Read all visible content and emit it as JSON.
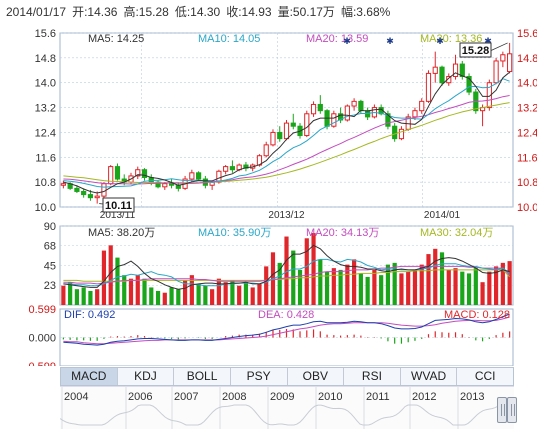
{
  "header": {
    "date": "2014/01/17",
    "open": "开:14.36",
    "high": "高:15.28",
    "low": "低:14.30",
    "close": "收:14.93",
    "volume": "量:50.17万",
    "amplitude": "幅:3.68%"
  },
  "colors": {
    "up": "#e0262a",
    "down": "#1aa51a",
    "ma5": "#333333",
    "ma10": "#2aa7c9",
    "ma20": "#c44cbf",
    "ma30": "#a5b820",
    "grid": "#b9cde2",
    "up_axis": "#d01818",
    "down_axis": "#139513"
  },
  "tabs": [
    "MACD",
    "KDJ",
    "BOLL",
    "PSY",
    "OBV",
    "RSI",
    "WVAD",
    "CCI"
  ],
  "active_tab": "MACD",
  "timeline_years": [
    "2004",
    "2006",
    "2007",
    "2008",
    "2009",
    "2010",
    "2011",
    "2012",
    "2013"
  ],
  "chart_data": [
    {
      "type": "candlestick",
      "ma_legend": [
        "MA5: 14.25",
        "MA10: 14.05",
        "MA20: 13.59",
        "MA30: 13.36"
      ],
      "y_ticks": [
        "15.6",
        "14.8",
        "14.0",
        "13.2",
        "12.4",
        "11.6",
        "10.8",
        "10.0"
      ],
      "x_ticks": [
        "2013/11",
        "2013/12",
        "2014/01"
      ],
      "ylim": [
        10.0,
        15.6
      ],
      "annotations": {
        "high_label": "15.28",
        "low_label": "10.11"
      },
      "ohlc": [
        [
          10.7,
          10.85,
          10.6,
          10.75
        ],
        [
          10.75,
          10.8,
          10.55,
          10.6
        ],
        [
          10.6,
          10.7,
          10.45,
          10.5
        ],
        [
          10.5,
          10.6,
          10.3,
          10.4
        ],
        [
          10.4,
          10.55,
          10.2,
          10.3
        ],
        [
          10.3,
          10.5,
          10.11,
          10.35
        ],
        [
          10.35,
          10.8,
          10.3,
          10.75
        ],
        [
          10.75,
          11.35,
          10.7,
          11.3
        ],
        [
          11.3,
          11.4,
          10.85,
          10.9
        ],
        [
          10.9,
          11.05,
          10.7,
          10.8
        ],
        [
          10.8,
          11.1,
          10.75,
          11.0
        ],
        [
          11.0,
          11.3,
          10.9,
          11.2
        ],
        [
          11.2,
          11.25,
          10.85,
          10.95
        ],
        [
          10.95,
          11.05,
          10.7,
          10.8
        ],
        [
          10.8,
          10.85,
          10.6,
          10.65
        ],
        [
          10.65,
          10.8,
          10.55,
          10.75
        ],
        [
          10.75,
          10.9,
          10.6,
          10.7
        ],
        [
          10.7,
          10.8,
          10.5,
          10.6
        ],
        [
          10.6,
          11.0,
          10.55,
          10.9
        ],
        [
          10.9,
          11.2,
          10.8,
          11.1
        ],
        [
          11.1,
          11.15,
          10.85,
          10.9
        ],
        [
          10.9,
          11.0,
          10.6,
          10.7
        ],
        [
          10.7,
          10.85,
          10.55,
          10.8
        ],
        [
          10.8,
          11.2,
          10.75,
          11.15
        ],
        [
          11.15,
          11.35,
          11.05,
          11.3
        ],
        [
          11.3,
          11.5,
          11.1,
          11.2
        ],
        [
          11.2,
          11.4,
          11.15,
          11.35
        ],
        [
          11.35,
          11.45,
          11.15,
          11.25
        ],
        [
          11.25,
          11.4,
          11.15,
          11.35
        ],
        [
          11.35,
          11.7,
          11.3,
          11.65
        ],
        [
          11.65,
          12.1,
          11.6,
          12.0
        ],
        [
          12.0,
          12.5,
          11.95,
          12.4
        ],
        [
          12.4,
          12.6,
          12.1,
          12.2
        ],
        [
          12.2,
          12.8,
          12.15,
          12.7
        ],
        [
          12.7,
          13.0,
          12.5,
          12.6
        ],
        [
          12.6,
          12.7,
          12.2,
          12.3
        ],
        [
          12.3,
          13.1,
          12.25,
          13.0
        ],
        [
          13.0,
          13.4,
          12.9,
          13.3
        ],
        [
          13.3,
          13.6,
          13.0,
          13.1
        ],
        [
          13.1,
          13.15,
          12.5,
          12.6
        ],
        [
          12.6,
          13.1,
          12.55,
          13.0
        ],
        [
          13.0,
          13.2,
          12.7,
          12.8
        ],
        [
          12.8,
          13.3,
          12.75,
          13.25
        ],
        [
          13.25,
          13.5,
          13.1,
          13.4
        ],
        [
          13.4,
          13.45,
          13.0,
          13.1
        ],
        [
          13.1,
          13.2,
          12.8,
          12.9
        ],
        [
          12.9,
          13.3,
          12.85,
          13.2
        ],
        [
          13.2,
          13.3,
          12.95,
          13.0
        ],
        [
          13.0,
          13.1,
          12.5,
          12.6
        ],
        [
          12.6,
          12.7,
          12.1,
          12.2
        ],
        [
          12.2,
          12.6,
          12.15,
          12.5
        ],
        [
          12.5,
          13.0,
          12.45,
          12.9
        ],
        [
          12.9,
          13.2,
          12.8,
          13.1
        ],
        [
          13.1,
          13.5,
          13.0,
          13.4
        ],
        [
          13.4,
          14.4,
          13.35,
          14.3
        ],
        [
          14.3,
          15.0,
          14.0,
          14.5
        ],
        [
          14.5,
          14.55,
          13.9,
          14.0
        ],
        [
          14.0,
          14.3,
          13.9,
          14.2
        ],
        [
          14.2,
          14.9,
          14.1,
          14.6
        ],
        [
          14.6,
          14.7,
          14.1,
          14.2
        ],
        [
          14.2,
          14.3,
          13.6,
          13.7
        ],
        [
          13.7,
          13.8,
          13.0,
          13.1
        ],
        [
          13.1,
          13.3,
          12.6,
          13.2
        ],
        [
          13.2,
          14.1,
          13.1,
          14.0
        ],
        [
          14.0,
          14.8,
          13.95,
          14.7
        ],
        [
          14.7,
          15.0,
          14.5,
          14.9
        ],
        [
          14.36,
          15.28,
          14.3,
          14.93
        ]
      ],
      "ma5": [
        10.8,
        10.75,
        10.68,
        10.58,
        10.5,
        10.45,
        10.5,
        10.63,
        10.75,
        10.8,
        10.9,
        11.04,
        11.02,
        10.95,
        10.92,
        10.87,
        10.79,
        10.7,
        10.74,
        10.81,
        10.85,
        10.84,
        10.84,
        10.93,
        11.01,
        11.07,
        11.2,
        11.26,
        11.29,
        11.36,
        11.49,
        11.73,
        11.92,
        12.18,
        12.38,
        12.44,
        12.56,
        12.78,
        12.86,
        12.86,
        12.86,
        12.96,
        12.95,
        12.91,
        13.11,
        13.09,
        13.13,
        13.15,
        12.96,
        12.78,
        12.7,
        12.68,
        12.66,
        12.82,
        13.24,
        13.64,
        13.94,
        14.15,
        14.32,
        14.22,
        14.14,
        13.88,
        13.56,
        13.56,
        13.76,
        14.16,
        14.34
      ],
      "ma10": [
        10.85,
        10.83,
        10.8,
        10.76,
        10.71,
        10.66,
        10.64,
        10.65,
        10.66,
        10.67,
        10.68,
        10.74,
        10.83,
        10.85,
        10.86,
        10.88,
        10.91,
        10.88,
        10.85,
        10.86,
        10.86,
        10.84,
        10.79,
        10.83,
        10.87,
        10.92,
        11.0,
        11.03,
        11.1,
        11.18,
        11.31,
        11.46,
        11.58,
        11.76,
        11.91,
        12.0,
        12.13,
        12.3,
        12.49,
        12.6,
        12.71,
        12.82,
        12.92,
        12.96,
        13.01,
        13.01,
        13.04,
        13.02,
        12.95,
        12.88,
        12.86,
        12.86,
        12.84,
        12.83,
        12.98,
        13.16,
        13.3,
        13.42,
        13.58,
        13.72,
        13.87,
        13.88,
        13.84,
        13.85,
        13.97,
        14.13,
        14.05
      ],
      "ma20": [
        10.9,
        10.89,
        10.87,
        10.84,
        10.81,
        10.78,
        10.76,
        10.75,
        10.75,
        10.75,
        10.74,
        10.74,
        10.75,
        10.76,
        10.76,
        10.77,
        10.78,
        10.77,
        10.76,
        10.76,
        10.77,
        10.79,
        10.82,
        10.84,
        10.85,
        10.88,
        10.92,
        10.95,
        10.97,
        11.01,
        11.06,
        11.12,
        11.2,
        11.28,
        11.37,
        11.45,
        11.54,
        11.64,
        11.75,
        11.85,
        11.95,
        12.04,
        12.15,
        12.24,
        12.34,
        12.44,
        12.54,
        12.63,
        12.71,
        12.75,
        12.79,
        12.84,
        12.88,
        12.92,
        12.97,
        13.04,
        13.1,
        13.17,
        13.23,
        13.3,
        13.37,
        13.4,
        13.41,
        13.44,
        13.49,
        13.55,
        13.59
      ],
      "ma30": [
        11.0,
        10.98,
        10.96,
        10.94,
        10.91,
        10.88,
        10.85,
        10.83,
        10.82,
        10.81,
        10.8,
        10.79,
        10.79,
        10.79,
        10.78,
        10.78,
        10.78,
        10.78,
        10.78,
        10.78,
        10.78,
        10.79,
        10.8,
        10.81,
        10.82,
        10.84,
        10.86,
        10.88,
        10.9,
        10.93,
        10.96,
        11.0,
        11.05,
        11.1,
        11.16,
        11.22,
        11.29,
        11.36,
        11.44,
        11.52,
        11.6,
        11.68,
        11.77,
        11.85,
        11.94,
        12.03,
        12.11,
        12.2,
        12.28,
        12.35,
        12.42,
        12.49,
        12.56,
        12.63,
        12.71,
        12.79,
        12.86,
        12.94,
        13.0,
        13.06,
        13.11,
        13.16,
        13.2,
        13.24,
        13.28,
        13.32,
        13.36
      ]
    },
    {
      "type": "bar",
      "ma_legend": [
        "MA5: 38.20万",
        "MA10: 35.90万",
        "MA20: 34.13万",
        "MA30: 32.04万"
      ],
      "y_ticks": [
        "90",
        "68",
        "45",
        "23"
      ],
      "ylim": [
        0,
        90
      ],
      "values": [
        22,
        26,
        18,
        20,
        16,
        18,
        62,
        68,
        54,
        34,
        30,
        34,
        30,
        20,
        16,
        14,
        20,
        18,
        28,
        34,
        24,
        22,
        18,
        30,
        26,
        28,
        22,
        26,
        20,
        24,
        44,
        60,
        48,
        78,
        62,
        40,
        76,
        82,
        52,
        38,
        42,
        40,
        46,
        52,
        36,
        32,
        40,
        34,
        46,
        48,
        36,
        38,
        40,
        46,
        58,
        64,
        60,
        40,
        42,
        38,
        36,
        42,
        26,
        38,
        44,
        48,
        50
      ],
      "ma5": [
        24,
        23,
        22,
        21,
        20,
        20,
        27,
        37,
        44,
        46,
        50,
        44,
        36,
        30,
        27,
        23,
        20,
        18,
        19,
        23,
        24,
        25,
        25,
        24,
        24,
        25,
        25,
        26,
        24,
        24,
        27,
        35,
        40,
        51,
        58,
        58,
        61,
        68,
        64,
        56,
        50,
        46,
        44,
        44,
        43,
        41,
        41,
        39,
        38,
        40,
        41,
        40,
        40,
        42,
        44,
        50,
        53,
        54,
        53,
        50,
        46,
        42,
        37,
        36,
        37,
        40,
        38
      ],
      "ma10": [
        24,
        24,
        23,
        23,
        22,
        22,
        24,
        28,
        32,
        33,
        35,
        34,
        36,
        38,
        35,
        34,
        32,
        27,
        24,
        24,
        23,
        22,
        22,
        22,
        24,
        24,
        25,
        25,
        25,
        24,
        26,
        30,
        33,
        38,
        41,
        41,
        44,
        50,
        52,
        52,
        50,
        49,
        52,
        51,
        49,
        45,
        43,
        40,
        41,
        41,
        40,
        40,
        40,
        41,
        42,
        45,
        47,
        47,
        47,
        45,
        44,
        44,
        42,
        41,
        40,
        42,
        36
      ],
      "ma20": [
        26,
        26,
        25,
        25,
        25,
        24,
        25,
        26,
        27,
        28,
        28,
        28,
        29,
        30,
        30,
        30,
        30,
        30,
        30,
        30,
        29,
        29,
        28,
        27,
        27,
        27,
        27,
        27,
        27,
        27,
        28,
        29,
        30,
        31,
        32,
        33,
        34,
        35,
        37,
        38,
        38,
        38,
        39,
        40,
        40,
        40,
        41,
        42,
        42,
        43,
        44,
        44,
        44,
        44,
        44,
        44,
        44,
        44,
        44,
        44,
        43,
        43,
        42,
        42,
        42,
        42,
        34
      ],
      "ma30": [
        28,
        28,
        28,
        27,
        27,
        27,
        27,
        27,
        27,
        27,
        28,
        28,
        28,
        28,
        28,
        28,
        28,
        28,
        28,
        28,
        28,
        28,
        28,
        28,
        28,
        28,
        28,
        28,
        28,
        28,
        28,
        29,
        29,
        30,
        30,
        31,
        31,
        32,
        33,
        33,
        34,
        34,
        35,
        35,
        36,
        36,
        36,
        37,
        37,
        38,
        38,
        38,
        39,
        39,
        39,
        40,
        40,
        40,
        40,
        40,
        40,
        40,
        40,
        40,
        40,
        40,
        32
      ]
    },
    {
      "type": "bar",
      "indicator": "MACD",
      "legend": [
        "DIF: 0.492",
        "DEA: 0.428",
        "MACD: 0.128"
      ],
      "y_ticks": [
        "0.599",
        "0.000",
        "-0.599"
      ],
      "ylim": [
        -0.599,
        0.599
      ],
      "macd": [
        -0.04,
        -0.05,
        -0.06,
        -0.06,
        -0.07,
        -0.07,
        -0.03,
        0.02,
        0.03,
        0.02,
        0.03,
        0.05,
        0.03,
        0.01,
        -0.01,
        -0.02,
        -0.03,
        -0.04,
        -0.02,
        0.0,
        -0.01,
        -0.03,
        -0.03,
        0.0,
        0.03,
        0.04,
        0.06,
        0.06,
        0.06,
        0.08,
        0.12,
        0.16,
        0.16,
        0.18,
        0.17,
        0.13,
        0.15,
        0.17,
        0.13,
        0.06,
        0.05,
        0.04,
        0.05,
        0.06,
        0.04,
        0.01,
        0.01,
        -0.02,
        -0.08,
        -0.13,
        -0.13,
        -0.1,
        -0.07,
        -0.03,
        0.07,
        0.13,
        0.11,
        0.1,
        0.11,
        0.07,
        0.01,
        -0.06,
        -0.08,
        -0.03,
        0.05,
        0.1,
        0.128
      ],
      "dif": [
        -0.1,
        -0.11,
        -0.12,
        -0.14,
        -0.15,
        -0.16,
        -0.14,
        -0.1,
        -0.08,
        -0.07,
        -0.05,
        -0.03,
        -0.02,
        -0.02,
        -0.03,
        -0.04,
        -0.05,
        -0.06,
        -0.06,
        -0.05,
        -0.05,
        -0.06,
        -0.06,
        -0.04,
        -0.02,
        0.0,
        0.02,
        0.04,
        0.05,
        0.07,
        0.11,
        0.16,
        0.19,
        0.23,
        0.26,
        0.26,
        0.29,
        0.33,
        0.34,
        0.31,
        0.31,
        0.31,
        0.32,
        0.34,
        0.33,
        0.31,
        0.31,
        0.29,
        0.25,
        0.2,
        0.18,
        0.18,
        0.19,
        0.22,
        0.29,
        0.36,
        0.37,
        0.38,
        0.4,
        0.39,
        0.37,
        0.33,
        0.31,
        0.33,
        0.38,
        0.44,
        0.492
      ],
      "dea": [
        -0.08,
        -0.09,
        -0.09,
        -0.11,
        -0.12,
        -0.13,
        -0.13,
        -0.12,
        -0.11,
        -0.1,
        -0.09,
        -0.08,
        -0.07,
        -0.06,
        -0.06,
        -0.05,
        -0.05,
        -0.05,
        -0.05,
        -0.05,
        -0.05,
        -0.05,
        -0.05,
        -0.05,
        -0.04,
        -0.03,
        -0.02,
        -0.01,
        0.0,
        0.01,
        0.03,
        0.06,
        0.09,
        0.12,
        0.15,
        0.18,
        0.2,
        0.23,
        0.26,
        0.28,
        0.29,
        0.29,
        0.3,
        0.31,
        0.31,
        0.31,
        0.31,
        0.31,
        0.3,
        0.28,
        0.26,
        0.25,
        0.24,
        0.24,
        0.25,
        0.27,
        0.3,
        0.32,
        0.34,
        0.35,
        0.36,
        0.36,
        0.35,
        0.35,
        0.36,
        0.39,
        0.428
      ]
    }
  ]
}
